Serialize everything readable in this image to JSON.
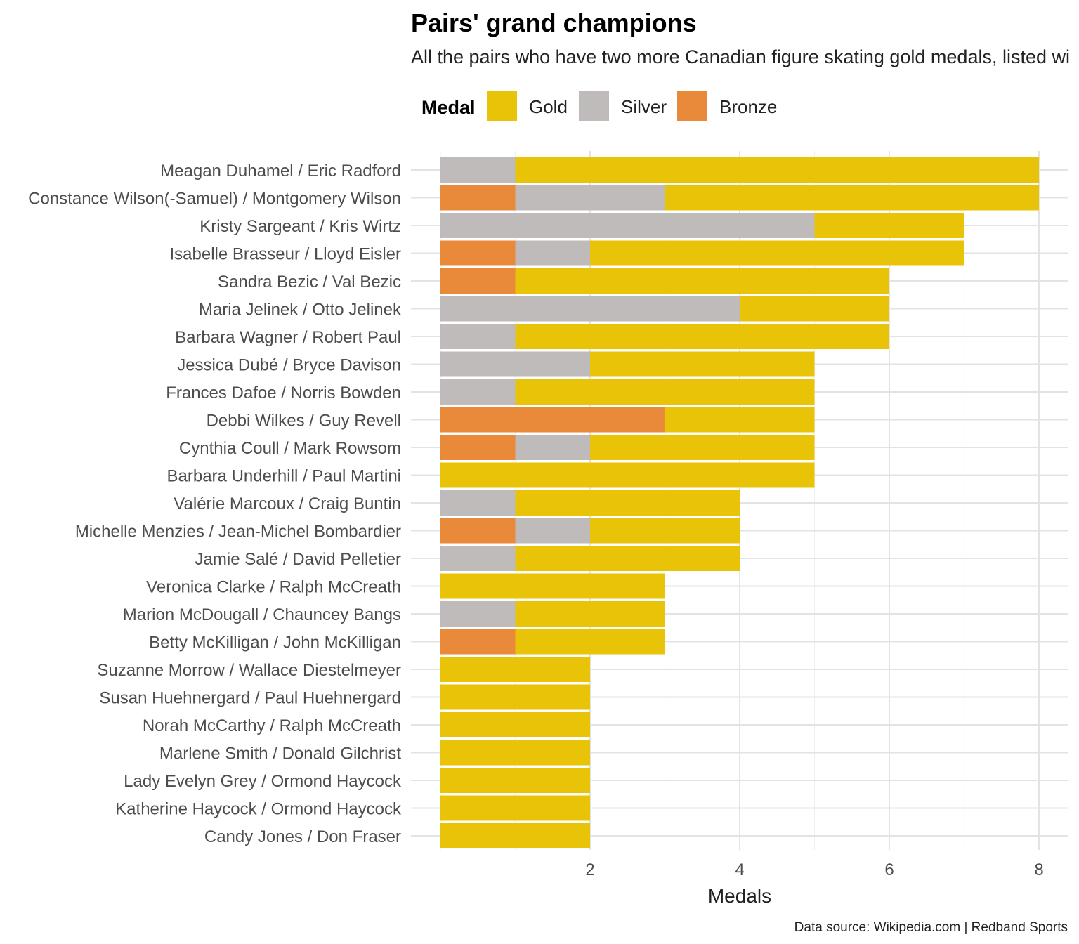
{
  "chart_data": {
    "type": "bar",
    "orientation": "horizontal",
    "stacked": true,
    "title": "Pairs' grand champions",
    "subtitle": "All the pairs who have two more Canadian figure skating gold medals, listed wi",
    "xlabel": "Medals",
    "caption": "Data source: Wikipedia.com  |  Redband Sports",
    "xlim": [
      0,
      8.4
    ],
    "x_ticks": [
      2,
      4,
      6,
      8
    ],
    "legend": {
      "title": "Medal",
      "placement": "top-left",
      "items": [
        {
          "label": "Gold",
          "color": "#E8C308"
        },
        {
          "label": "Silver",
          "color": "#BFBBBA"
        },
        {
          "label": "Bronze",
          "color": "#E88A3A"
        }
      ]
    },
    "categories": [
      "Meagan Duhamel / Eric Radford",
      "Constance Wilson(-Samuel) / Montgomery Wilson",
      "Kristy Sargeant / Kris Wirtz",
      "Isabelle Brasseur / Lloyd Eisler",
      "Sandra Bezic / Val Bezic",
      "Maria Jelinek / Otto Jelinek",
      "Barbara Wagner / Robert Paul",
      "Jessica Dubé / Bryce Davison",
      "Frances Dafoe / Norris Bowden",
      "Debbi Wilkes / Guy Revell",
      "Cynthia Coull / Mark Rowsom",
      "Barbara Underhill / Paul Martini",
      "Valérie Marcoux / Craig Buntin",
      "Michelle Menzies / Jean-Michel Bombardier",
      "Jamie Salé / David Pelletier",
      "Veronica Clarke / Ralph McCreath",
      "Marion McDougall / Chauncey Bangs",
      "Betty McKilligan / John McKilligan",
      "Suzanne Morrow / Wallace Diestelmeyer",
      "Susan Huehnergard / Paul Huehnergard",
      "Norah McCarthy / Ralph McCreath",
      "Marlene Smith / Donald Gilchrist",
      "Lady Evelyn Grey / Ormond Haycock",
      "Katherine Haycock / Ormond Haycock",
      "Candy Jones / Don Fraser"
    ],
    "series": [
      {
        "name": "Bronze",
        "color": "#E88A3A",
        "values": [
          0,
          1,
          0,
          1,
          1,
          0,
          0,
          0,
          0,
          3,
          1,
          0,
          0,
          1,
          0,
          0,
          0,
          1,
          0,
          0,
          0,
          0,
          0,
          0,
          0
        ]
      },
      {
        "name": "Silver",
        "color": "#BFBBBA",
        "values": [
          1,
          2,
          5,
          1,
          0,
          4,
          1,
          2,
          1,
          0,
          1,
          0,
          1,
          1,
          1,
          0,
          1,
          0,
          0,
          0,
          0,
          0,
          0,
          0,
          0
        ]
      },
      {
        "name": "Gold",
        "color": "#E8C308",
        "values": [
          7,
          5,
          2,
          5,
          5,
          2,
          5,
          3,
          4,
          2,
          3,
          5,
          3,
          2,
          3,
          3,
          2,
          2,
          2,
          2,
          2,
          2,
          2,
          2,
          2
        ]
      }
    ]
  }
}
